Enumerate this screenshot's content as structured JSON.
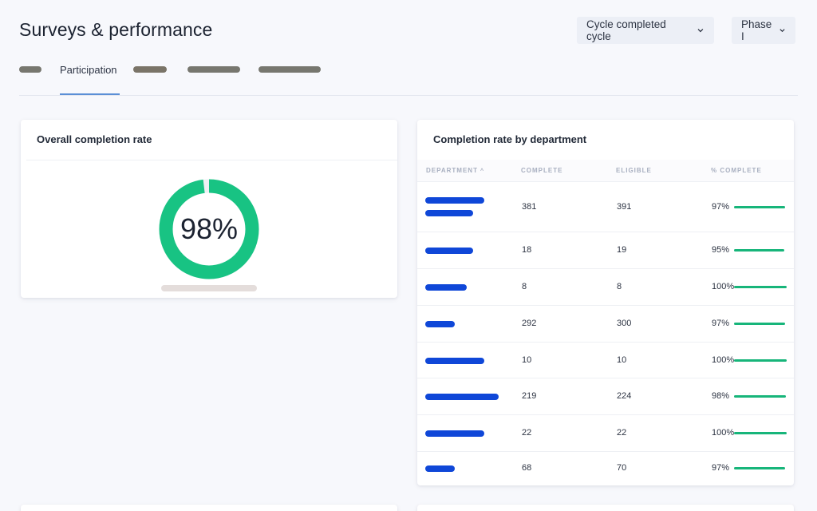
{
  "header": {
    "title": "Surveys & performance",
    "cycle_dropdown": "Cycle completed cycle",
    "phase_dropdown": "Phase I"
  },
  "tabs": {
    "active_label": "Participation",
    "accent_color": "#5b8fd6"
  },
  "overall_card": {
    "title": "Overall completion rate",
    "percent_label": "98%",
    "completion": 0.98,
    "ring_color": "#18c383"
  },
  "department_card": {
    "title": "Completion rate by department",
    "columns": {
      "department": "DEPARTMENT",
      "complete": "COMPLETE",
      "eligible": "ELIGIBLE",
      "percent": "% COMPLETE"
    },
    "rows": [
      {
        "complete": "381",
        "eligible": "391",
        "percent": "97%",
        "pct_value": 0.97
      },
      {
        "complete": "18",
        "eligible": "19",
        "percent": "95%",
        "pct_value": 0.95
      },
      {
        "complete": "8",
        "eligible": "8",
        "percent": "100%",
        "pct_value": 1.0
      },
      {
        "complete": "292",
        "eligible": "300",
        "percent": "97%",
        "pct_value": 0.97
      },
      {
        "complete": "10",
        "eligible": "10",
        "percent": "100%",
        "pct_value": 1.0
      },
      {
        "complete": "219",
        "eligible": "224",
        "percent": "98%",
        "pct_value": 0.98
      },
      {
        "complete": "22",
        "eligible": "22",
        "percent": "100%",
        "pct_value": 1.0
      },
      {
        "complete": "68",
        "eligible": "70",
        "percent": "97%",
        "pct_value": 0.97
      }
    ],
    "bar_color": "#0f47d8",
    "pct_color": "#17b57a"
  }
}
